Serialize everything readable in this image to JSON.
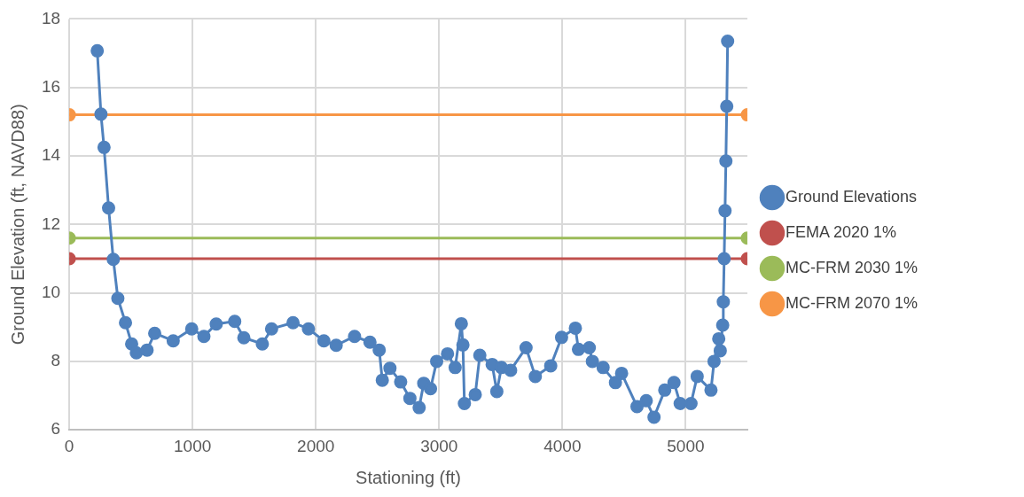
{
  "chart_data": {
    "type": "line",
    "xlabel": "Stationing (ft)",
    "ylabel": "Ground Elevation (ft, NAVD88)",
    "xlim": [
      0,
      5500
    ],
    "xticks": [
      0,
      1000,
      2000,
      3000,
      4000,
      5000
    ],
    "ylim": [
      6,
      18
    ],
    "yticks": [
      6,
      8,
      10,
      12,
      14,
      16,
      18
    ],
    "grid": true,
    "legend": "right",
    "marker": "circle",
    "line_style": "solid",
    "series": [
      {
        "name": "Ground Elevations",
        "color": "#4f81bd",
        "x": [
          227,
          257,
          282,
          319,
          357,
          394,
          456,
          506,
          544,
          631,
          693,
          843,
          993,
          1092,
          1192,
          1342,
          1416,
          1566,
          1641,
          1815,
          1940,
          2065,
          2165,
          2314,
          2439,
          2514,
          2539,
          2601,
          2688,
          2763,
          2838,
          2875,
          2930,
          2980,
          3068,
          3130,
          3180,
          3193,
          3205,
          3293,
          3330,
          3430,
          3468,
          3505,
          3580,
          3705,
          3780,
          3905,
          3993,
          4105,
          4130,
          4218,
          4243,
          4330,
          4430,
          4480,
          4605,
          4680,
          4743,
          4830,
          4905,
          4955,
          5043,
          5093,
          5205,
          5230,
          5268,
          5280,
          5300,
          5305,
          5312,
          5319,
          5326,
          5333,
          5340
        ],
        "values": [
          17.07,
          15.22,
          14.25,
          12.48,
          10.98,
          9.84,
          9.13,
          8.51,
          8.25,
          8.33,
          8.82,
          8.6,
          8.95,
          8.73,
          9.09,
          9.17,
          8.69,
          8.51,
          8.95,
          9.13,
          8.95,
          8.6,
          8.47,
          8.73,
          8.56,
          8.33,
          7.45,
          7.8,
          7.4,
          6.92,
          6.65,
          7.36,
          7.2,
          8.0,
          8.22,
          7.82,
          9.1,
          8.48,
          6.77,
          7.03,
          8.18,
          7.91,
          7.12,
          7.82,
          7.74,
          8.4,
          7.56,
          7.87,
          8.7,
          8.97,
          8.35,
          8.4,
          8.0,
          7.82,
          7.38,
          7.65,
          6.68,
          6.85,
          6.37,
          7.16,
          7.38,
          6.77,
          6.77,
          7.56,
          7.16,
          8.0,
          8.66,
          8.31,
          9.06,
          9.74,
          11.0,
          12.4,
          13.85,
          15.45,
          17.35
        ]
      },
      {
        "name": "FEMA 2020 1%",
        "color": "#c0504d",
        "x": [
          0,
          5500
        ],
        "values": [
          11.0,
          11.0
        ]
      },
      {
        "name": "MC-FRM 2030 1%",
        "color": "#9bbb59",
        "x": [
          0,
          5500
        ],
        "values": [
          11.6,
          11.6
        ]
      },
      {
        "name": "MC-FRM 2070 1%",
        "color": "#f79646",
        "x": [
          0,
          5500
        ],
        "values": [
          15.2,
          15.2
        ]
      }
    ]
  }
}
